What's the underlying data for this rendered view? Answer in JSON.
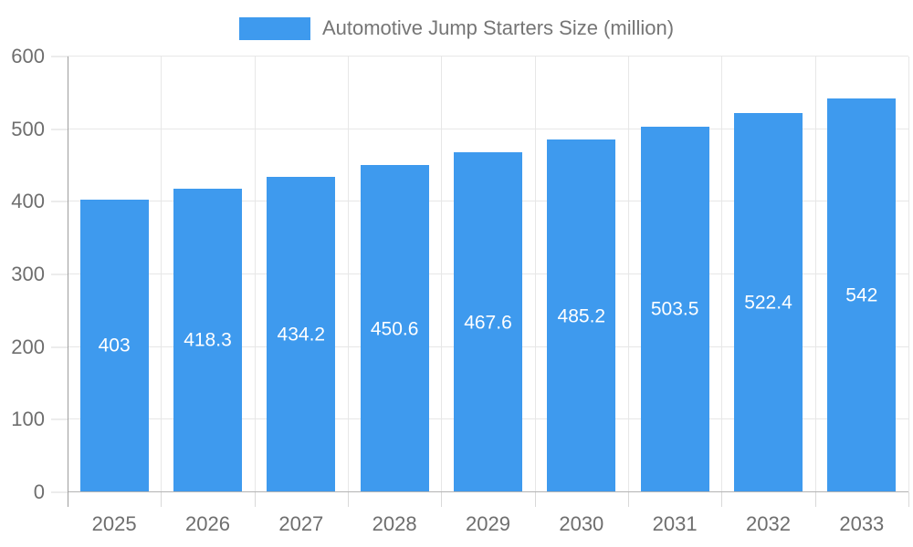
{
  "legend": {
    "label": "Automotive Jump Starters Size (million)"
  },
  "colors": {
    "bar": "#3E9AEE",
    "grid": "#E7E7E7",
    "tick": "#D9D9D9",
    "axis_line": "#9E9E9E",
    "baseline": "#B3B3B3",
    "text": "#6E6E6E",
    "legend_text": "#757575",
    "bar_label": "#FFFFFF",
    "background": "#FFFFFF"
  },
  "chart_data": {
    "type": "bar",
    "title": "Automotive Jump Starters Size (million)",
    "categories": [
      "2025",
      "2026",
      "2027",
      "2028",
      "2029",
      "2030",
      "2031",
      "2032",
      "2033"
    ],
    "values": [
      403,
      418.3,
      434.2,
      450.6,
      467.6,
      485.2,
      503.5,
      522.4,
      542
    ],
    "value_labels": [
      "403",
      "418.3",
      "434.2",
      "450.6",
      "467.6",
      "485.2",
      "503.5",
      "522.4",
      "542"
    ],
    "xlabel": "",
    "ylabel": "",
    "ylim": [
      0,
      600
    ],
    "yticks": [
      0,
      100,
      200,
      300,
      400,
      500,
      600
    ],
    "grid": true,
    "legend_position": "top-center",
    "value_label_position": "inside-middle",
    "bar_width_fraction": 0.733
  }
}
